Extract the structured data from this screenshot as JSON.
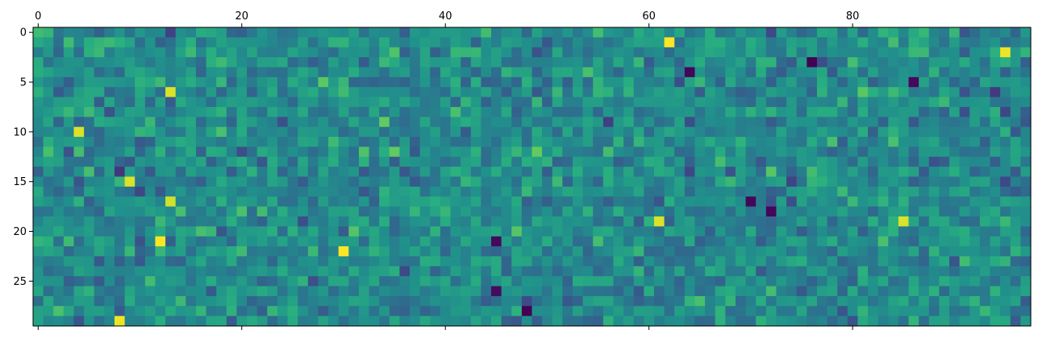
{
  "chart_data": {
    "type": "heatmap",
    "title": "",
    "xlabel": "",
    "ylabel": "",
    "colormap": "viridis",
    "n_rows": 30,
    "n_cols": 98,
    "xlim": [
      0,
      98
    ],
    "ylim": [
      30,
      0
    ],
    "x_axis_position": "top",
    "grid": false,
    "x_ticks": [
      0,
      20,
      40,
      60,
      80
    ],
    "x_tick_labels": [
      "0",
      "20",
      "40",
      "60",
      "80"
    ],
    "y_ticks": [
      0,
      5,
      10,
      15,
      20,
      25
    ],
    "y_tick_labels": [
      "0",
      "5",
      "10",
      "15",
      "20",
      "25"
    ],
    "value_range": [
      0,
      1
    ],
    "values_note": "Cell values are visually random in the source; approximate values generated deterministically (seed) in the 0–1 range, plus the clearly distinct extreme cells listed below.",
    "seed": 20240611,
    "highlight_cells": [
      {
        "row": 1,
        "col": 62,
        "value": 1.0
      },
      {
        "row": 2,
        "col": 95,
        "value": 0.98
      },
      {
        "row": 3,
        "col": 76,
        "value": 0.0
      },
      {
        "row": 4,
        "col": 64,
        "value": 0.02
      },
      {
        "row": 5,
        "col": 86,
        "value": 0.03
      },
      {
        "row": 6,
        "col": 13,
        "value": 0.95
      },
      {
        "row": 10,
        "col": 4,
        "value": 0.95
      },
      {
        "row": 15,
        "col": 9,
        "value": 0.95
      },
      {
        "row": 17,
        "col": 13,
        "value": 0.93
      },
      {
        "row": 17,
        "col": 70,
        "value": 0.02
      },
      {
        "row": 18,
        "col": 72,
        "value": 0.02
      },
      {
        "row": 19,
        "col": 61,
        "value": 0.95
      },
      {
        "row": 19,
        "col": 85,
        "value": 0.95
      },
      {
        "row": 21,
        "col": 12,
        "value": 1.0
      },
      {
        "row": 21,
        "col": 45,
        "value": 0.03
      },
      {
        "row": 22,
        "col": 30,
        "value": 1.0
      },
      {
        "row": 26,
        "col": 45,
        "value": 0.04
      },
      {
        "row": 28,
        "col": 48,
        "value": 0.0
      },
      {
        "row": 29,
        "col": 8,
        "value": 0.98
      }
    ]
  }
}
